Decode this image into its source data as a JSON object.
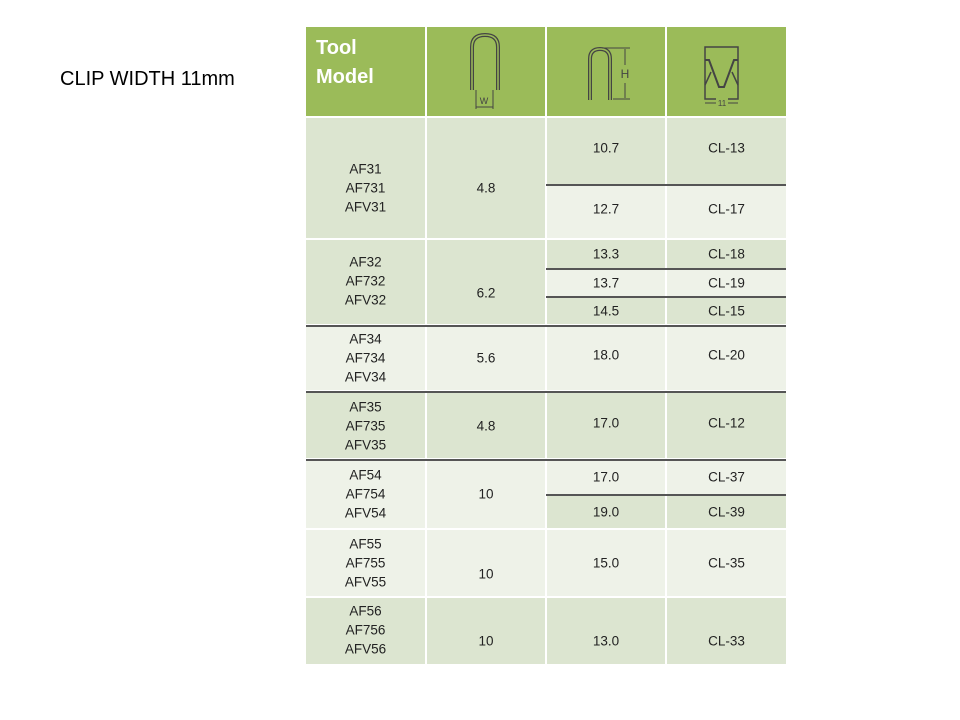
{
  "page": {
    "title": "CLIP WIDTH 11mm"
  },
  "header": {
    "tool_model": "Tool\nModel",
    "icons": [
      {
        "name": "clip-width-w-icon",
        "label": "W"
      },
      {
        "name": "clip-height-h-icon",
        "label": "H"
      },
      {
        "name": "clip-profile-11-icon",
        "label": "11"
      }
    ]
  },
  "colors": {
    "header": "#9bbb59",
    "row_dark": "#dce5d0",
    "row_light": "#eef2e8"
  },
  "groups": [
    {
      "models": "AF31\nAF731\nAFV31",
      "width": "4.8",
      "rows": [
        {
          "height": "10.7",
          "clip": "CL-13"
        },
        {
          "height": "12.7",
          "clip": "CL-17"
        }
      ]
    },
    {
      "models": "AF32\nAF732\nAFV32",
      "width": "6.2",
      "rows": [
        {
          "height": "13.3",
          "clip": "CL-18"
        },
        {
          "height": "13.7",
          "clip": "CL-19"
        },
        {
          "height": "14.5",
          "clip": "CL-15"
        }
      ]
    },
    {
      "models": "AF34\nAF734\nAFV34",
      "width": "5.6",
      "rows": [
        {
          "height": "18.0",
          "clip": "CL-20"
        }
      ]
    },
    {
      "models": "AF35\nAF735\nAFV35",
      "width": "4.8",
      "rows": [
        {
          "height": "17.0",
          "clip": "CL-12"
        }
      ]
    },
    {
      "models": "AF54\nAF754\nAFV54",
      "width": "10",
      "rows": [
        {
          "height": "17.0",
          "clip": "CL-37"
        },
        {
          "height": "19.0",
          "clip": "CL-39"
        }
      ]
    },
    {
      "models": "AF55\nAF755\nAFV55",
      "width": "10",
      "rows": [
        {
          "height": "15.0",
          "clip": "CL-35"
        }
      ]
    },
    {
      "models": "AF56\nAF756\nAFV56",
      "width": "10",
      "rows": [
        {
          "height": "13.0",
          "clip": "CL-33"
        }
      ]
    }
  ]
}
